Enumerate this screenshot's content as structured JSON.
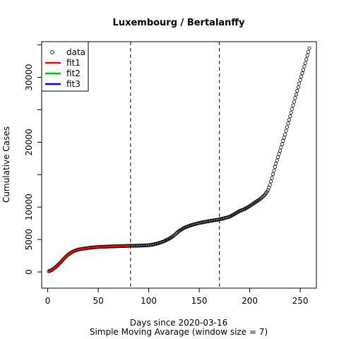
{
  "chart_data": {
    "type": "scatter",
    "title": "Luxembourg / Bertalanffy",
    "xlabel": "Days since 2020-03-16",
    "sublabel": "Simple Moving Avarage (window size = 7)",
    "ylabel": "Cumulative Cases",
    "xlim": [
      -6,
      266
    ],
    "ylim": [
      -2500,
      35500
    ],
    "x_ticks": [
      0,
      50,
      100,
      150,
      200,
      250
    ],
    "x_tick_labels": [
      "0",
      "50",
      "100",
      "150",
      "200",
      "250"
    ],
    "y_ticks": [
      0,
      5000,
      10000,
      20000,
      30000
    ],
    "y_tick_labels": [
      "0",
      "5000",
      "10000",
      "20000",
      "30000"
    ],
    "y_minor_ticks": [
      15000,
      25000,
      35000
    ],
    "vlines": [
      82,
      170
    ],
    "legend": {
      "position": "top-left",
      "entries": [
        {
          "label": "data",
          "kind": "point",
          "color": "#000000"
        },
        {
          "label": "fit1",
          "kind": "line",
          "color": "#ff0000"
        },
        {
          "label": "fit2",
          "kind": "line",
          "color": "#00cd00"
        },
        {
          "label": "fit3",
          "kind": "line",
          "color": "#0000ff"
        }
      ]
    },
    "data_series": {
      "name": "data",
      "x_start": 1,
      "x_end": 259,
      "anchors_x": [
        1,
        4,
        8,
        12,
        16,
        20,
        25,
        30,
        40,
        50,
        60,
        70,
        82,
        90,
        100,
        105,
        110,
        115,
        118,
        121,
        124,
        127,
        130,
        135,
        140,
        145,
        150,
        160,
        170,
        180,
        184,
        190,
        195,
        200,
        205,
        210,
        215,
        218,
        220,
        222,
        225,
        230,
        235,
        240,
        245,
        250,
        255,
        259
      ],
      "anchors_y": [
        100,
        300,
        750,
        1350,
        2050,
        2650,
        3150,
        3450,
        3700,
        3850,
        3920,
        3970,
        4030,
        4050,
        4120,
        4250,
        4450,
        4720,
        4950,
        5200,
        5500,
        5900,
        6300,
        6800,
        7100,
        7350,
        7550,
        7850,
        8100,
        8500,
        8850,
        9400,
        9700,
        10150,
        10700,
        11200,
        11900,
        12600,
        13400,
        14500,
        16200,
        18700,
        21200,
        24000,
        26800,
        29600,
        32200,
        34500
      ]
    },
    "fit1": {
      "name": "fit1",
      "color": "#ff0000",
      "x_start": 1,
      "x_end": 82
    },
    "fit2": {
      "name": "fit2",
      "color": "#00cd00"
    },
    "fit3": {
      "name": "fit3",
      "color": "#0000ff"
    }
  }
}
